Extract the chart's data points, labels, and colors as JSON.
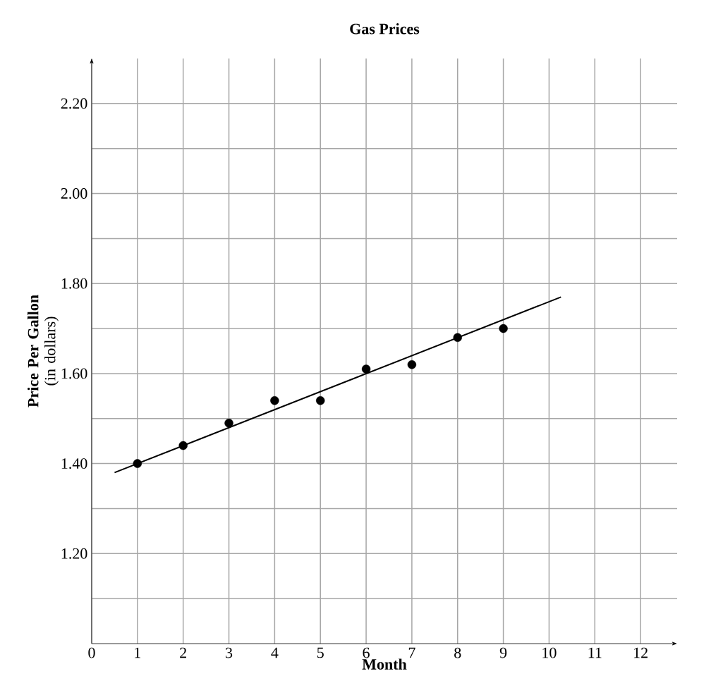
{
  "chart_data": {
    "type": "scatter",
    "title": "Gas Prices",
    "xlabel": "Month",
    "ylabel": "**Price Per Gallon** (in dollars)",
    "x": [
      1,
      2,
      3,
      4,
      5,
      6,
      7,
      8,
      9
    ],
    "series": [
      {
        "color": "#000000",
        "values": [
          1.4,
          1.44,
          1.49,
          1.54,
          1.54,
          1.61,
          1.62,
          1.68,
          1.7
        ]
      },
      {
        "type": "line",
        "marker": "none",
        "color": "#000000",
        "x": [
          0.5,
          10.26
        ],
        "values": [
          1.38,
          1.77
        ]
      }
    ],
    "xlim": [
      0,
      12.8
    ],
    "ylim": [
      1.0,
      2.3
    ],
    "xticks": [
      0,
      1,
      2,
      3,
      4,
      5,
      6,
      7,
      8,
      9,
      10,
      11,
      12
    ],
    "yticks": [
      {
        "value": 1.1,
        "label": null
      },
      {
        "value": 1.2,
        "label": "1.20"
      },
      {
        "value": 1.3,
        "label": null
      },
      {
        "value": 1.4,
        "label": "1.40"
      },
      {
        "value": 1.5,
        "label": null
      },
      {
        "value": 1.6,
        "label": "1.60"
      },
      {
        "value": 1.7,
        "label": null
      },
      {
        "value": 1.8,
        "label": "1.80"
      },
      {
        "value": 1.9,
        "label": null
      },
      {
        "value": 2.0,
        "label": "2.00"
      },
      {
        "value": 2.1,
        "label": null
      },
      {
        "value": 2.2,
        "label": "2.20"
      }
    ],
    "grid": true,
    "marker": "circle"
  }
}
